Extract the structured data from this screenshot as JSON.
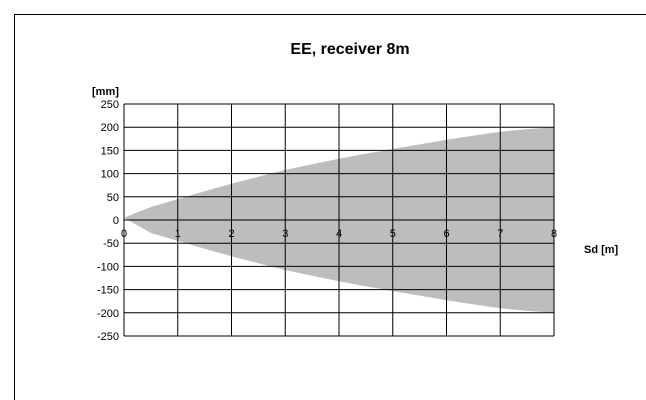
{
  "chart_data": {
    "type": "area",
    "title": "EE, receiver 8m",
    "xlabel": "Sd [m]",
    "ylabel": "[mm]",
    "xlim": [
      0,
      8
    ],
    "ylim": [
      -250,
      250
    ],
    "x_ticks": [
      0,
      1,
      2,
      3,
      4,
      5,
      6,
      7,
      8
    ],
    "y_ticks": [
      250,
      200,
      150,
      100,
      50,
      0,
      -50,
      -100,
      -150,
      -200,
      -250
    ],
    "grid": true,
    "fill_color": "#bdbdbd",
    "series": [
      {
        "x": [
          0,
          0.5,
          1,
          1.5,
          2,
          2.5,
          3,
          3.5,
          4,
          4.5,
          5,
          5.5,
          6,
          6.5,
          7,
          7.5,
          8
        ],
        "upper": [
          5,
          28,
          45,
          62,
          78,
          93,
          108,
          120,
          132,
          143,
          153,
          163,
          173,
          182,
          190,
          196,
          200
        ],
        "lower": [
          5,
          -28,
          -45,
          -62,
          -78,
          -93,
          -108,
          -120,
          -132,
          -143,
          -153,
          -163,
          -173,
          -182,
          -190,
          -196,
          -200
        ]
      }
    ]
  }
}
